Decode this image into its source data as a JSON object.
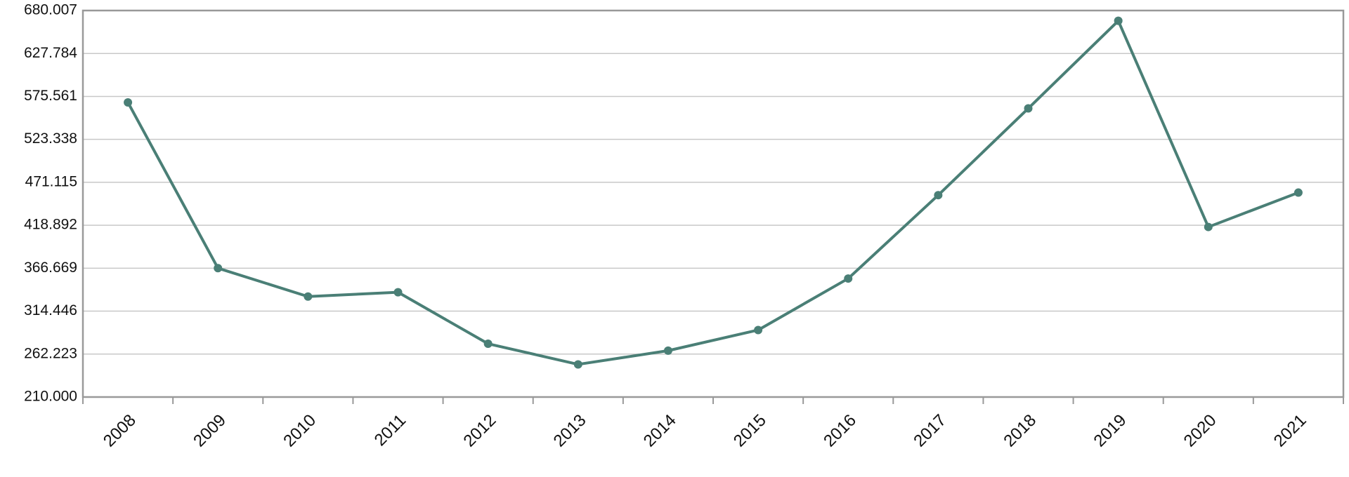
{
  "chart_data": {
    "type": "line",
    "categories": [
      "2008",
      "2009",
      "2010",
      "2011",
      "2012",
      "2013",
      "2014",
      "2015",
      "2016",
      "2017",
      "2018",
      "2019",
      "2020",
      "2021"
    ],
    "values": [
      568.3,
      366.7,
      332.2,
      337.4,
      274.8,
      249.7,
      266.4,
      291.5,
      354.1,
      455.5,
      561.0,
      667.5,
      416.8,
      458.6
    ],
    "color": "#4a7f76",
    "ylim": [
      210,
      680.007
    ],
    "yticks": [
      {
        "value": 210,
        "label": "210.000"
      },
      262.223,
      314.446,
      366.669,
      418.892,
      471.115,
      523.338,
      575.561,
      627.784,
      680.007
    ],
    "grid": true
  }
}
